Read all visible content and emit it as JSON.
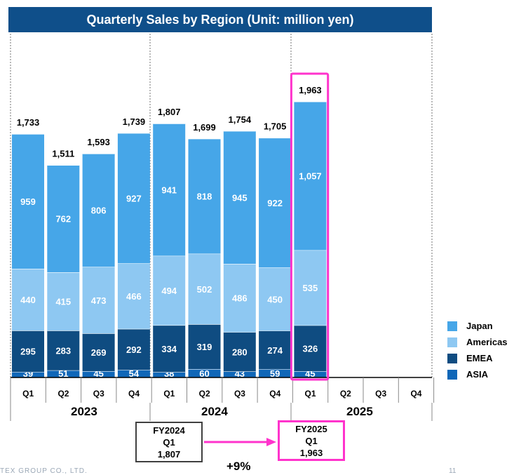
{
  "chart_data": {
    "type": "bar",
    "stacked": true,
    "title": "Quarterly Sales by Region (Unit: million yen)",
    "categories": [
      "Q1",
      "Q2",
      "Q3",
      "Q4",
      "Q1",
      "Q2",
      "Q3",
      "Q4",
      "Q1",
      "Q2",
      "Q3",
      "Q4"
    ],
    "years": [
      "2023",
      "2024",
      "2025"
    ],
    "series": [
      {
        "name": "ASIA",
        "color": "#1067b8",
        "values": [
          39,
          51,
          45,
          54,
          38,
          60,
          43,
          59,
          45,
          null,
          null,
          null
        ]
      },
      {
        "name": "EMEA",
        "color": "#0f4c81",
        "values": [
          295,
          283,
          269,
          292,
          334,
          319,
          280,
          274,
          326,
          null,
          null,
          null
        ]
      },
      {
        "name": "Americas",
        "color": "#8ec8f2",
        "values": [
          440,
          415,
          473,
          466,
          494,
          502,
          486,
          450,
          535,
          null,
          null,
          null
        ]
      },
      {
        "name": "Japan",
        "color": "#46a6e8",
        "values": [
          959,
          762,
          806,
          927,
          941,
          818,
          945,
          922,
          1057,
          null,
          null,
          null
        ]
      }
    ],
    "totals": [
      1733,
      1511,
      1593,
      1739,
      1807,
      1699,
      1754,
      1705,
      1963,
      null,
      null,
      null
    ],
    "value_labels": {
      "ASIA": [
        "39",
        "51",
        "45",
        "54",
        "38",
        "60",
        "43",
        "59",
        "45"
      ],
      "EMEA": [
        "295",
        "283",
        "269",
        "292",
        "334",
        "319",
        "280",
        "274",
        "326"
      ],
      "Americas": [
        "440",
        "415",
        "473",
        "466",
        "494",
        "502",
        "486",
        "450",
        "535"
      ],
      "Japan": [
        "959",
        "762",
        "806",
        "927",
        "941",
        "818",
        "945",
        "922",
        "1,057"
      ],
      "Total": [
        "1,733",
        "1,511",
        "1,593",
        "1,739",
        "1,807",
        "1,699",
        "1,754",
        "1,705",
        "1,963"
      ]
    },
    "legend_order": [
      "Japan",
      "Americas",
      "EMEA",
      "ASIA"
    ],
    "legend_position": "right",
    "highlight_color": "#ff33cc"
  },
  "comparison": {
    "prev": {
      "line1": "FY2024",
      "line2": "Q1",
      "value": "1,807"
    },
    "curr": {
      "line1": "FY2025",
      "line2": "Q1",
      "value": "1,963"
    },
    "growth": "+9%"
  },
  "footer": {
    "company": "TEX GROUP CO., LTD.",
    "page": "11"
  }
}
